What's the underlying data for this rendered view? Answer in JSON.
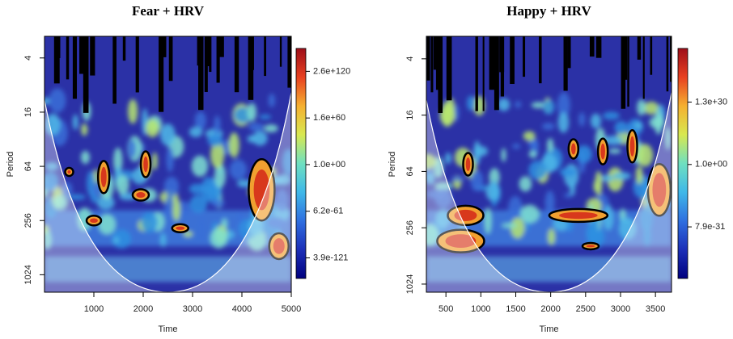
{
  "chart_data": [
    {
      "type": "wavelet",
      "title": "Fear + HRV",
      "xlabel": "Time",
      "ylabel": "Period",
      "xlim": [
        0,
        5000
      ],
      "xticks": [
        1000,
        2000,
        3000,
        4000,
        5000
      ],
      "ylim": [
        2.3,
        1600
      ],
      "yticks": [
        4,
        16,
        64,
        256,
        1024
      ],
      "ylog": true,
      "yreverse": true,
      "zlim": [
        1e-147,
        1e+150
      ],
      "zlog": true,
      "zticks": [
        3.9e-121,
        6.2e-61,
        {
          "value": 1,
          "label": "1.0e+00"
        },
        1.6e+60,
        2.6e+120
      ],
      "colormap": [
        "#00007f",
        "#1c2fb8",
        "#2f6fe0",
        "#3fb8e8",
        "#6fe0c0",
        "#d8e850",
        "#f5b030",
        "#e84020",
        "#9e0f1a"
      ]
    },
    {
      "type": "wavelet",
      "title": "Happy + HRV",
      "xlabel": "Time",
      "ylabel": "Period",
      "xlim": [
        220,
        3730
      ],
      "xticks": [
        500,
        1000,
        1500,
        2000,
        2500,
        3000,
        3500
      ],
      "ylim": [
        2.3,
        1250
      ],
      "yticks": [
        4,
        16,
        64,
        256,
        1024
      ],
      "ylog": true,
      "yreverse": true,
      "zlim": [
        1e-55,
        1e+56
      ],
      "zlog": true,
      "zticks": [
        7.9e-31,
        {
          "value": 1,
          "label": "1.0e+00"
        },
        1.3e+30
      ],
      "colormap": [
        "#00007f",
        "#1c2fb8",
        "#2f6fe0",
        "#3fb8e8",
        "#6fe0c0",
        "#d8e850",
        "#f5b030",
        "#e84020",
        "#9e0f1a"
      ]
    }
  ]
}
